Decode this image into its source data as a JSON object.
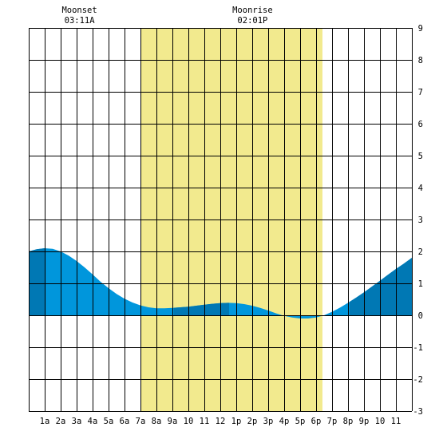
{
  "chart_data": {
    "type": "area",
    "title": "",
    "xlabel": "",
    "ylabel": "",
    "x_ticks": [
      "1a",
      "2a",
      "3a",
      "4a",
      "5a",
      "6a",
      "7a",
      "8a",
      "9a",
      "10",
      "11",
      "12",
      "1p",
      "2p",
      "3p",
      "4p",
      "5p",
      "6p",
      "7p",
      "8p",
      "9p",
      "10",
      "11"
    ],
    "xlim": [
      0,
      24
    ],
    "ylim": [
      -3,
      9
    ],
    "y_ticks": [
      9,
      8,
      7,
      6,
      5,
      4,
      3,
      2,
      1,
      0,
      -1,
      -2,
      -3
    ],
    "daylight": {
      "start": 7.0,
      "end": 18.4
    },
    "moon_events": [
      {
        "label": "Moonset",
        "time": "03:11A",
        "x": 3.18
      },
      {
        "label": "Moonrise",
        "time": "02:01P",
        "x": 14.02
      }
    ],
    "series": [
      {
        "x": [
          0,
          0.5,
          1,
          1.5,
          2,
          2.5,
          3,
          3.5,
          4,
          4.5,
          5,
          5.5,
          6,
          6.5,
          7,
          7.5,
          8,
          8.5,
          9,
          9.5,
          10,
          10.5,
          11,
          11.5,
          12,
          12.5,
          13,
          13.5,
          14,
          14.5,
          15,
          15.5,
          16,
          16.5,
          17,
          17.5,
          18,
          18.5,
          19,
          19.5,
          20,
          20.5,
          21,
          21.5,
          22,
          22.5,
          23,
          23.5,
          24
        ],
        "values": [
          2.0,
          2.07,
          2.1,
          2.08,
          2.0,
          1.87,
          1.7,
          1.5,
          1.28,
          1.05,
          0.85,
          0.67,
          0.52,
          0.4,
          0.31,
          0.25,
          0.22,
          0.22,
          0.23,
          0.25,
          0.27,
          0.3,
          0.33,
          0.36,
          0.38,
          0.39,
          0.38,
          0.35,
          0.3,
          0.23,
          0.15,
          0.06,
          -0.02,
          -0.07,
          -0.1,
          -0.1,
          -0.07,
          0.0,
          0.11,
          0.24,
          0.39,
          0.55,
          0.72,
          0.9,
          1.08,
          1.27,
          1.45,
          1.62,
          1.8
        ]
      }
    ],
    "colors": {
      "background": "#ffffff",
      "daylight": "#f2ea8e",
      "tide": "#0096dc",
      "tide_dark": "#0078b4",
      "grid": "#000000"
    },
    "dark_bands": [
      [
        0,
        1.05
      ],
      [
        9.1,
        12.55
      ],
      [
        20.1,
        24
      ]
    ],
    "grid": true
  }
}
